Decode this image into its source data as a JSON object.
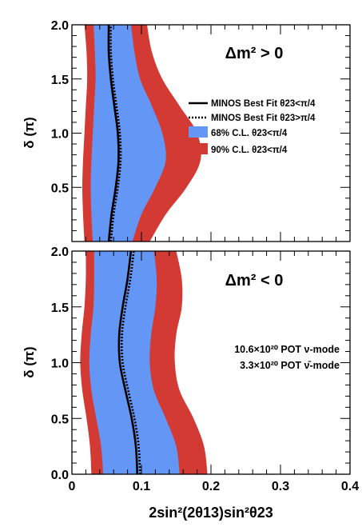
{
  "chart_data": [
    {
      "type": "area",
      "panel": "top",
      "annotation": "Δm² > 0",
      "xlabel": "",
      "ylabel": "δ (π)",
      "xlim": [
        0,
        0.4
      ],
      "ylim": [
        0,
        2.0
      ],
      "yticks": [
        "0.5",
        "1.0",
        "1.5",
        "2.0"
      ],
      "y": [
        0.0,
        0.25,
        0.5,
        0.75,
        1.0,
        1.25,
        1.5,
        1.75,
        2.0
      ],
      "series": [
        {
          "name": "90% C.L. θ23<π/4",
          "color": "#d43a34",
          "kind": "band",
          "x_low": [
            0.018,
            0.016,
            0.015,
            0.016,
            0.018,
            0.02,
            0.022,
            0.021,
            0.018
          ],
          "x_high": [
            0.112,
            0.135,
            0.165,
            0.185,
            0.18,
            0.155,
            0.13,
            0.115,
            0.108
          ]
        },
        {
          "name": "68% C.L. θ23<π/4",
          "color": "#6496f5",
          "kind": "band",
          "x_low": [
            0.03,
            0.028,
            0.027,
            0.028,
            0.03,
            0.032,
            0.034,
            0.033,
            0.031
          ],
          "x_high": [
            0.087,
            0.1,
            0.12,
            0.135,
            0.13,
            0.115,
            0.098,
            0.09,
            0.085
          ]
        },
        {
          "name": "MINOS Best Fit θ23<π/4",
          "color": "#000000",
          "kind": "line",
          "dash": "solid",
          "x": [
            0.053,
            0.057,
            0.063,
            0.067,
            0.066,
            0.061,
            0.056,
            0.053,
            0.053
          ]
        },
        {
          "name": "MINOS Best Fit θ23>π/4",
          "color": "#000000",
          "kind": "line",
          "dash": "dotted",
          "x": [
            0.056,
            0.06,
            0.066,
            0.07,
            0.069,
            0.064,
            0.059,
            0.056,
            0.056
          ]
        }
      ]
    },
    {
      "type": "area",
      "panel": "bottom",
      "annotation": "Δm² < 0",
      "xlabel": "2sin²(2θ13)sin²θ23",
      "ylabel": "δ (π)",
      "xlim": [
        0,
        0.4
      ],
      "ylim": [
        0,
        2.0
      ],
      "xticks": [
        "0",
        "0.1",
        "0.2",
        "0.3",
        "0.4"
      ],
      "yticks": [
        "0.0",
        "0.5",
        "1.0",
        "1.5",
        "2.0"
      ],
      "y": [
        0.0,
        0.25,
        0.5,
        0.75,
        1.0,
        1.25,
        1.5,
        1.75,
        2.0
      ],
      "series": [
        {
          "name": "90% C.L. θ23<π/4",
          "color": "#d43a34",
          "kind": "band",
          "x_low": [
            0.028,
            0.026,
            0.021,
            0.015,
            0.012,
            0.014,
            0.018,
            0.02,
            0.02
          ],
          "x_high": [
            0.195,
            0.19,
            0.175,
            0.155,
            0.148,
            0.15,
            0.158,
            0.158,
            0.15
          ]
        },
        {
          "name": "68% C.L. θ23<π/4",
          "color": "#6496f5",
          "kind": "band",
          "x_low": [
            0.045,
            0.042,
            0.035,
            0.028,
            0.025,
            0.027,
            0.031,
            0.032,
            0.032
          ],
          "x_high": [
            0.155,
            0.15,
            0.135,
            0.118,
            0.112,
            0.114,
            0.12,
            0.122,
            0.118
          ]
        },
        {
          "name": "MINOS Best Fit θ23<π/4",
          "color": "#000000",
          "kind": "line",
          "dash": "solid",
          "x": [
            0.094,
            0.092,
            0.086,
            0.077,
            0.069,
            0.068,
            0.073,
            0.08,
            0.085
          ]
        },
        {
          "name": "MINOS Best Fit θ23>π/4",
          "color": "#000000",
          "kind": "line",
          "dash": "dotted",
          "x": [
            0.098,
            0.096,
            0.09,
            0.081,
            0.073,
            0.072,
            0.077,
            0.084,
            0.089
          ]
        }
      ]
    }
  ],
  "legend": {
    "placement": "right of top panel",
    "items": [
      {
        "label": "MINOS Best Fit θ23<π/4",
        "kind": "line",
        "dash": "solid",
        "color": "#000000"
      },
      {
        "label": "MINOS Best Fit θ23>π/4",
        "kind": "line",
        "dash": "dotted",
        "color": "#000000"
      },
      {
        "label": "68% C.L. θ23<π/4",
        "kind": "box",
        "color": "#6496f5"
      },
      {
        "label": "90% C.L. θ23<π/4",
        "kind": "box",
        "color": "#d43a34"
      }
    ]
  },
  "exposure_notes": [
    "10.6×10²⁰ POT ν-mode",
    "3.3×10²⁰ POT ν̄-mode"
  ]
}
